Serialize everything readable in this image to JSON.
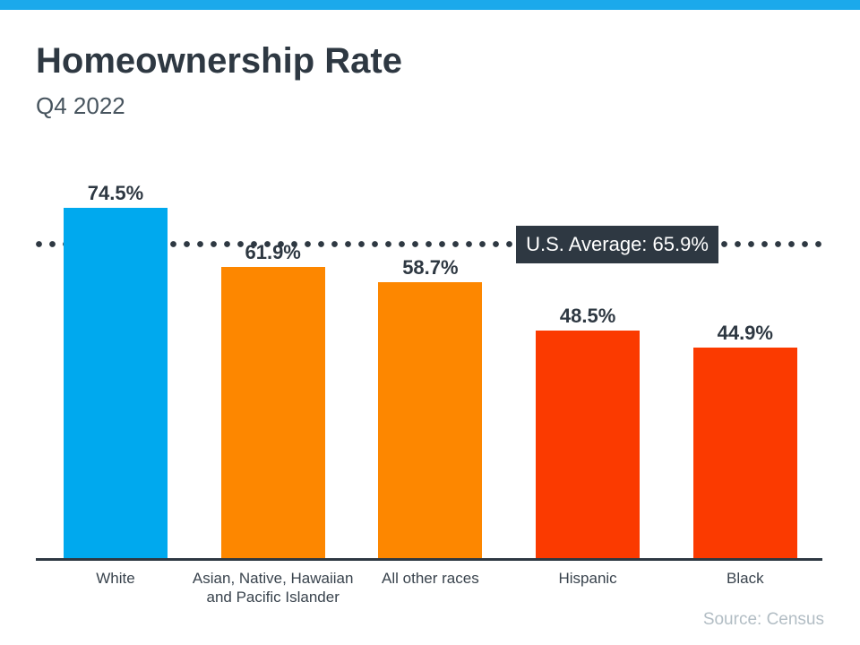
{
  "page": {
    "title": "Homeownership Rate",
    "subtitle": "Q4 2022",
    "source": "Source: Census"
  },
  "chart_data": {
    "type": "bar",
    "title": "Homeownership Rate",
    "subtitle": "Q4 2022",
    "categories": [
      "White",
      "Asian, Native, Hawaiian and Pacific Islander",
      "All other races",
      "Hispanic",
      "Black"
    ],
    "tick_labels": [
      "White",
      "Asian, Native, Hawaiian\nand Pacific Islander",
      "All other races",
      "Hispanic",
      "Black"
    ],
    "values": [
      74.5,
      61.9,
      58.7,
      48.5,
      44.9
    ],
    "value_labels": [
      "74.5%",
      "61.9%",
      "58.7%",
      "48.5%",
      "44.9%"
    ],
    "bar_colors": [
      "#00A9EE",
      "#FD8700",
      "#FD8700",
      "#FB3A00",
      "#FB3A00"
    ],
    "reference_line": {
      "label": "U.S. Average: 65.9%",
      "value": 65.9,
      "style": "dotted",
      "color": "#2E3842"
    },
    "ylim": [
      0,
      80
    ],
    "grid": false,
    "legend": "none",
    "source": "Source: Census",
    "colors": {
      "top_strip": "#1BA9EB",
      "blue": "#00A9EE",
      "orange": "#FD8700",
      "red_orange": "#FB3A00",
      "dark": "#2E3842",
      "average_box_bg": "#2E3842",
      "average_box_text": "#FFFFFF",
      "subtitle_text": "#47545E",
      "category_text": "#39434D",
      "source_text": "#B2BDC4"
    }
  }
}
